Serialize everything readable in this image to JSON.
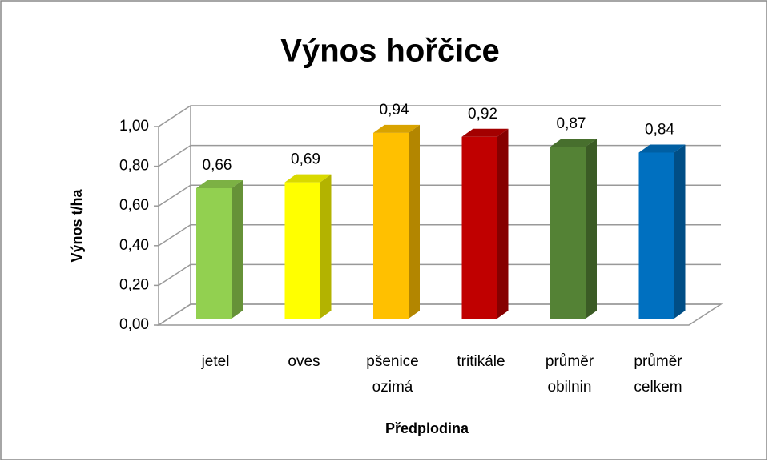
{
  "chart_data": {
    "type": "bar3d",
    "title": "Výnos hořčice",
    "x_label": "Předplodina",
    "y_label": "Výnos t/ha",
    "categories": [
      "jetel",
      "oves",
      "pšenice ozimá",
      "tritikále",
      "průměr obilnin",
      "průměr celkem"
    ],
    "values": [
      0.66,
      0.69,
      0.94,
      0.92,
      0.87,
      0.84
    ],
    "value_labels": [
      "0,66",
      "0,69",
      "0,94",
      "0,92",
      "0,87",
      "0,84"
    ],
    "colors": [
      "#92d050",
      "#ffff00",
      "#ffc000",
      "#c00000",
      "#548235",
      "#0070c0"
    ],
    "ylim": [
      0,
      1
    ],
    "yticks": [
      {
        "value": 0,
        "label": "0,00"
      },
      {
        "value": 0.2,
        "label": "0,20"
      },
      {
        "value": 0.4,
        "label": "0,40"
      },
      {
        "value": 0.6,
        "label": "0,60"
      },
      {
        "value": 0.8,
        "label": "0,80"
      },
      {
        "value": 1,
        "label": "1,00"
      }
    ],
    "grid": true
  }
}
